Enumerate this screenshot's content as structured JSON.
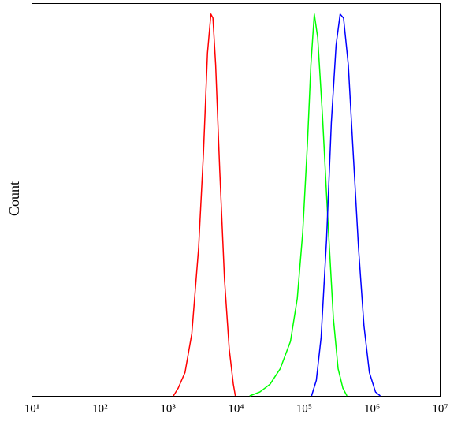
{
  "chart_data": {
    "type": "line",
    "ylabel": "Count",
    "xscale": "log",
    "xlim": [
      10,
      10000000
    ],
    "ylim": [
      0,
      100
    ],
    "xticks": [
      {
        "value": 10,
        "label": "10¹"
      },
      {
        "value": 100,
        "label": "10²"
      },
      {
        "value": 1000,
        "label": "10³"
      },
      {
        "value": 10000,
        "label": "10⁴"
      },
      {
        "value": 100000,
        "label": "10⁵"
      },
      {
        "value": 1000000,
        "label": "10⁶"
      },
      {
        "value": 10000000,
        "label": "10⁷"
      }
    ],
    "series": [
      {
        "color": "#ff0000",
        "x": [
          1202,
          1413,
          1778,
          2239,
          2818,
          3311,
          3802,
          4266,
          4571,
          5012,
          5754,
          6761,
          7943,
          9120,
          9772
        ],
        "values": [
          0,
          2,
          6,
          16,
          38,
          62,
          88,
          98,
          97,
          85,
          58,
          30,
          12,
          3,
          0
        ]
      },
      {
        "color": "#00ff00",
        "x": [
          15849,
          22387,
          31623,
          44668,
          63096,
          79433,
          95499,
          112202,
          125893,
          141254,
          158489,
          186209,
          223872,
          269153,
          316228,
          371535,
          426580
        ],
        "values": [
          0,
          1,
          3,
          7,
          14,
          25,
          42,
          65,
          85,
          98,
          92,
          72,
          45,
          20,
          7,
          2,
          0
        ]
      },
      {
        "color": "#0000ff",
        "x": [
          128825,
          151356,
          177828,
          213796,
          251189,
          295121,
          338844,
          380189,
          446684,
          524807,
          630957,
          758578,
          912011,
          1122018,
          1318257
        ],
        "values": [
          0,
          4,
          15,
          40,
          70,
          90,
          98,
          97,
          85,
          63,
          38,
          18,
          6,
          1,
          0
        ]
      }
    ]
  }
}
